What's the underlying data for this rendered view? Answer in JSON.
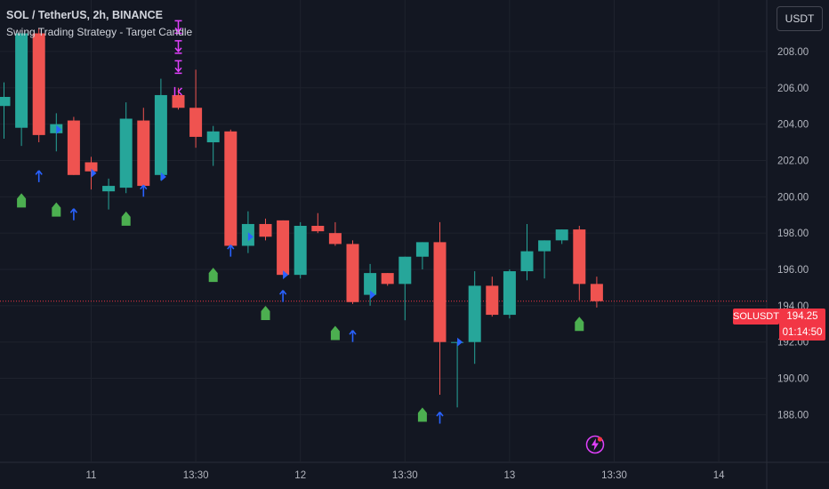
{
  "header": {
    "title": "SOL / TetherUS, 2h, BINANCE",
    "indicator": "Swing Trading Strategy - Target Candle"
  },
  "currency_button": "USDT",
  "last_price": {
    "symbol": "SOLUSDT",
    "price": "194.25",
    "countdown": "01:14:50",
    "color": "#f23645"
  },
  "colors": {
    "background": "#131722",
    "grid": "#1e222d",
    "up": "#26a69a",
    "down": "#ef5350",
    "buy_marker": "#4caf50",
    "arrow": "#2962ff",
    "sell_marker": "#e040fb"
  },
  "icons": {
    "alert": "lightning-bolt-icon"
  },
  "chart_data": {
    "type": "candlestick",
    "symbol": "SOL / TetherUS",
    "interval": "2h",
    "exchange": "BINANCE",
    "y_ticks": [
      "188.00",
      "190.00",
      "192.00",
      "194.00",
      "196.00",
      "198.00",
      "200.00",
      "202.00",
      "204.00",
      "206.00",
      "208.00"
    ],
    "x_ticks": [
      {
        "label": "11",
        "index": 5
      },
      {
        "label": "13:30",
        "index": 11
      },
      {
        "label": "12",
        "index": 17
      },
      {
        "label": "13:30",
        "index": 23
      },
      {
        "label": "13",
        "index": 29
      },
      {
        "label": "13:30",
        "index": 35
      },
      {
        "label": "14",
        "index": 41
      }
    ],
    "ylim": [
      186.6,
      210.2
    ],
    "candles": [
      {
        "o": 205.0,
        "h": 206.3,
        "l": 203.2,
        "c": 205.5
      },
      {
        "o": 203.8,
        "h": 209.0,
        "l": 202.8,
        "c": 209.0
      },
      {
        "o": 209.0,
        "h": 209.3,
        "l": 203.0,
        "c": 203.4
      },
      {
        "o": 203.5,
        "h": 204.6,
        "l": 202.5,
        "c": 204.0
      },
      {
        "o": 204.2,
        "h": 204.4,
        "l": 201.2,
        "c": 201.2
      },
      {
        "o": 201.9,
        "h": 202.2,
        "l": 200.4,
        "c": 201.4
      },
      {
        "o": 200.3,
        "h": 201.0,
        "l": 199.3,
        "c": 200.6
      },
      {
        "o": 200.5,
        "h": 205.2,
        "l": 200.2,
        "c": 204.3
      },
      {
        "o": 204.2,
        "h": 204.9,
        "l": 200.5,
        "c": 200.6
      },
      {
        "o": 201.2,
        "h": 206.5,
        "l": 200.9,
        "c": 205.6
      },
      {
        "o": 205.6,
        "h": 206.0,
        "l": 204.8,
        "c": 204.9
      },
      {
        "o": 204.9,
        "h": 207.0,
        "l": 202.7,
        "c": 203.3
      },
      {
        "o": 203.0,
        "h": 203.9,
        "l": 201.7,
        "c": 203.6
      },
      {
        "o": 203.6,
        "h": 203.7,
        "l": 197.3,
        "c": 197.3
      },
      {
        "o": 197.3,
        "h": 199.2,
        "l": 196.9,
        "c": 198.5
      },
      {
        "o": 198.5,
        "h": 198.8,
        "l": 197.6,
        "c": 197.8
      },
      {
        "o": 198.7,
        "h": 198.7,
        "l": 195.7,
        "c": 195.7
      },
      {
        "o": 195.7,
        "h": 198.6,
        "l": 195.5,
        "c": 198.4
      },
      {
        "o": 198.4,
        "h": 199.1,
        "l": 198.0,
        "c": 198.1
      },
      {
        "o": 198.0,
        "h": 198.6,
        "l": 197.3,
        "c": 197.4
      },
      {
        "o": 197.4,
        "h": 197.6,
        "l": 194.1,
        "c": 194.2
      },
      {
        "o": 194.6,
        "h": 196.3,
        "l": 194.0,
        "c": 195.8
      },
      {
        "o": 195.8,
        "h": 195.8,
        "l": 195.1,
        "c": 195.2
      },
      {
        "o": 195.2,
        "h": 196.7,
        "l": 193.2,
        "c": 196.7
      },
      {
        "o": 196.7,
        "h": 197.5,
        "l": 196.0,
        "c": 197.5
      },
      {
        "o": 197.5,
        "h": 198.6,
        "l": 189.1,
        "c": 192.0
      },
      {
        "o": 192.0,
        "h": 192.0,
        "l": 188.4,
        "c": 192.0
      },
      {
        "o": 192.0,
        "h": 195.9,
        "l": 190.8,
        "c": 195.1
      },
      {
        "o": 195.1,
        "h": 195.6,
        "l": 193.4,
        "c": 193.5
      },
      {
        "o": 193.5,
        "h": 196.0,
        "l": 193.3,
        "c": 195.9
      },
      {
        "o": 195.9,
        "h": 198.5,
        "l": 195.4,
        "c": 197.0
      },
      {
        "o": 197.0,
        "h": 197.6,
        "l": 195.5,
        "c": 197.6
      },
      {
        "o": 197.6,
        "h": 198.2,
        "l": 197.4,
        "c": 198.2
      },
      {
        "o": 198.2,
        "h": 198.4,
        "l": 194.3,
        "c": 195.2
      },
      {
        "o": 195.2,
        "h": 195.6,
        "l": 193.9,
        "c": 194.25
      }
    ],
    "markers": [
      {
        "type": "arrow-up",
        "index": 2,
        "value": 201.1
      },
      {
        "type": "arrow-up",
        "index": 4,
        "value": 199.0
      },
      {
        "type": "arrow-up",
        "index": 8,
        "value": 200.3
      },
      {
        "type": "arrow-up",
        "index": 13,
        "value": 197.0
      },
      {
        "type": "arrow-up",
        "index": 16,
        "value": 194.5
      },
      {
        "type": "arrow-up",
        "index": 20,
        "value": 192.3
      },
      {
        "type": "arrow-up",
        "index": 25,
        "value": 187.8
      },
      {
        "type": "flag-up",
        "index": 1,
        "value": 199.8
      },
      {
        "type": "flag-up",
        "index": 3,
        "value": 199.3
      },
      {
        "type": "flag-up",
        "index": 7,
        "value": 198.8
      },
      {
        "type": "flag-up",
        "index": 12,
        "value": 195.7
      },
      {
        "type": "flag-up",
        "index": 15,
        "value": 193.6
      },
      {
        "type": "flag-up",
        "index": 19,
        "value": 192.5
      },
      {
        "type": "flag-up",
        "index": 24,
        "value": 188.0
      },
      {
        "type": "flag-up",
        "index": 33,
        "value": 193.0
      },
      {
        "type": "flag-sell",
        "index": 10,
        "value": 209.3
      },
      {
        "type": "flag-sell",
        "index": 10,
        "value": 208.2
      },
      {
        "type": "flag-sell",
        "index": 10,
        "value": 207.1
      },
      {
        "type": "tick-left",
        "index": 10,
        "value": 205.8
      },
      {
        "type": "tick-right",
        "index": 3,
        "value": 203.7
      },
      {
        "type": "tick-right",
        "index": 5,
        "value": 201.3
      },
      {
        "type": "tick-right",
        "index": 9,
        "value": 201.1
      },
      {
        "type": "tick-right",
        "index": 14,
        "value": 197.8
      },
      {
        "type": "tick-right",
        "index": 16,
        "value": 195.7
      },
      {
        "type": "tick-right",
        "index": 21,
        "value": 194.6
      },
      {
        "type": "tick-right",
        "index": 26,
        "value": 192.0
      }
    ]
  }
}
